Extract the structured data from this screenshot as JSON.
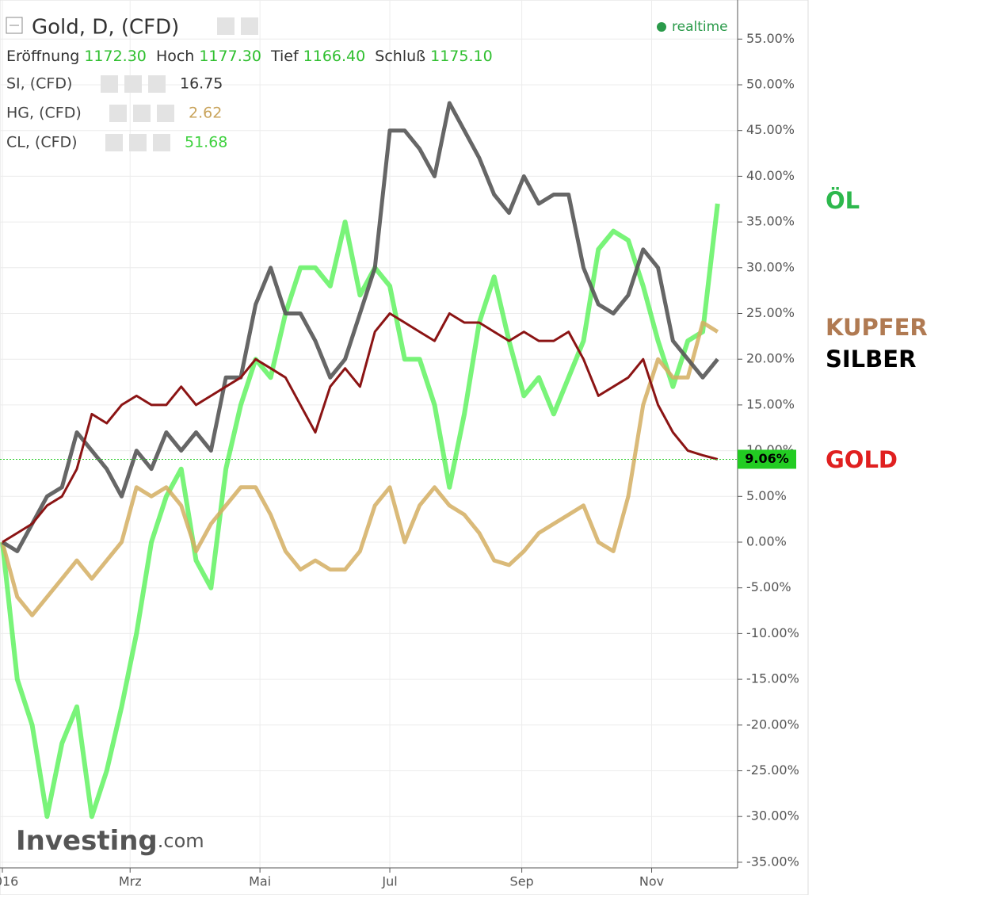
{
  "header": {
    "title": "Gold, D, (CFD)",
    "status": "realtime",
    "ohlc": [
      [
        "Eröffnung",
        "1172.30"
      ],
      [
        "Hoch",
        "1177.30"
      ],
      [
        "Tief",
        "1166.40"
      ],
      [
        "Schluß",
        "1175.10"
      ]
    ],
    "overlays": [
      [
        "SI, (CFD)",
        "16.75"
      ],
      [
        "HG, (CFD)",
        "2.62"
      ],
      [
        "CL, (CFD)",
        "51.68"
      ]
    ],
    "logo": [
      "Investing",
      ".com"
    ]
  },
  "chart_data": {
    "type": "line",
    "x": [
      0,
      7,
      14,
      21,
      28,
      35,
      42,
      49,
      56,
      63,
      70,
      77,
      84,
      91,
      98,
      105,
      112,
      119,
      126,
      133,
      140,
      147,
      154,
      161,
      168,
      175,
      182,
      189,
      196,
      203,
      210,
      217,
      224,
      231,
      238,
      245,
      252,
      259,
      266,
      273,
      280,
      287,
      294,
      301,
      308,
      315,
      322,
      329,
      336
    ],
    "xlim": [
      0,
      345
    ],
    "xticks": [
      {
        "value": 0,
        "label": "2016"
      },
      {
        "value": 60,
        "label": "Mrz"
      },
      {
        "value": 121,
        "label": "Mai"
      },
      {
        "value": 182,
        "label": "Jul"
      },
      {
        "value": 244,
        "label": "Sep"
      },
      {
        "value": 305,
        "label": "Nov"
      }
    ],
    "ylim": [
      -35,
      56.5
    ],
    "yticks": [
      {
        "value": -35,
        "label": "-35.00%"
      },
      {
        "value": -30,
        "label": "-30.00%"
      },
      {
        "value": -25,
        "label": "-25.00%"
      },
      {
        "value": -20,
        "label": "-20.00%"
      },
      {
        "value": -15,
        "label": "-15.00%"
      },
      {
        "value": -10,
        "label": "-10.00%"
      },
      {
        "value": -5,
        "label": "-5.00%"
      },
      {
        "value": 0,
        "label": "0.00%"
      },
      {
        "value": 5,
        "label": "5.00%"
      },
      {
        "value": 10,
        "label": "10.00%"
      },
      {
        "value": 15,
        "label": "15.00%"
      },
      {
        "value": 20,
        "label": "20.00%"
      },
      {
        "value": 25,
        "label": "25.00%"
      },
      {
        "value": 30,
        "label": "30.00%"
      },
      {
        "value": 35,
        "label": "35.00%"
      },
      {
        "value": 40,
        "label": "40.00%"
      },
      {
        "value": 45,
        "label": "45.00%"
      },
      {
        "value": 50,
        "label": "50.00%"
      },
      {
        "value": 55,
        "label": "55.00%"
      }
    ],
    "grid": true,
    "marker": {
      "value": 9.06,
      "label": "9.06%",
      "color": "#22cc22"
    },
    "series": [
      {
        "name": "GOLD",
        "color": "#8b1414",
        "label_color": "#e02020",
        "values": [
          0,
          1,
          2,
          4,
          5,
          8,
          14,
          13,
          15,
          16,
          15,
          15,
          17,
          15,
          16,
          17,
          18,
          20,
          19,
          18,
          15,
          12,
          17,
          19,
          17,
          23,
          25,
          24,
          23,
          22,
          25,
          24,
          24,
          23,
          22,
          23,
          22,
          22,
          23,
          20,
          16,
          17,
          18,
          20,
          15,
          12,
          10,
          9.5,
          9.06
        ]
      },
      {
        "name": "SILBER",
        "color": "#555555",
        "label_color": "#000000",
        "values": [
          0,
          -1,
          2,
          5,
          6,
          12,
          10,
          8,
          5,
          10,
          8,
          12,
          10,
          12,
          10,
          18,
          18,
          26,
          30,
          25,
          25,
          22,
          18,
          20,
          25,
          30,
          45,
          45,
          43,
          40,
          48,
          45,
          42,
          38,
          36,
          40,
          37,
          38,
          38,
          30,
          26,
          25,
          27,
          32,
          30,
          22,
          20,
          18,
          20
        ]
      },
      {
        "name": "KUPFER",
        "color": "#d4ae62",
        "label_color": "#b07a52",
        "values": [
          0,
          -6,
          -8,
          -6,
          -4,
          -2,
          -4,
          -2,
          0,
          6,
          5,
          6,
          4,
          -1,
          2,
          4,
          6,
          6,
          3,
          -1,
          -3,
          -2,
          -3,
          -3,
          -1,
          4,
          6,
          0,
          4,
          6,
          4,
          3,
          1,
          -2,
          -2.5,
          -1,
          1,
          2,
          3,
          4,
          0,
          -1,
          5,
          15,
          20,
          18,
          18,
          24,
          23
        ]
      },
      {
        "name": "ÖL",
        "color": "#4cf04c",
        "label_color": "#2db84d",
        "values": [
          0,
          -15,
          -20,
          -30,
          -22,
          -18,
          -30,
          -25,
          -18,
          -10,
          0,
          5,
          8,
          -2,
          -5,
          8,
          15,
          20,
          18,
          25,
          30,
          30,
          28,
          35,
          27,
          30,
          28,
          20,
          20,
          15,
          6,
          14,
          24,
          29,
          22,
          16,
          18,
          14,
          18,
          22,
          32,
          34,
          33,
          28,
          22,
          17,
          22,
          23,
          37
        ]
      }
    ]
  }
}
